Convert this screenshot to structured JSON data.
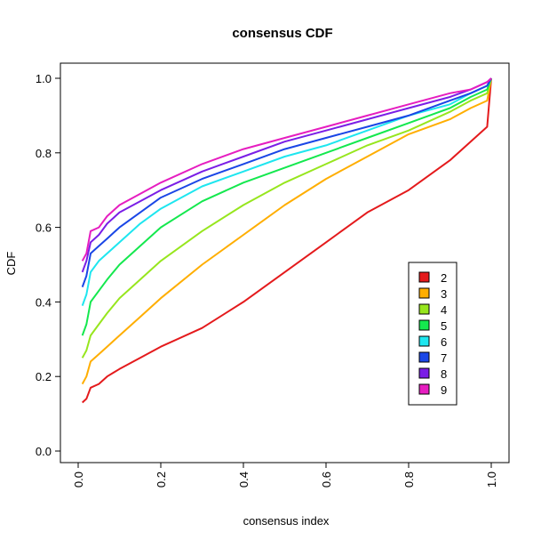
{
  "chart_data": {
    "type": "line",
    "title": "consensus CDF",
    "xlabel": "consensus index",
    "ylabel": "CDF",
    "xlim": [
      0,
      1
    ],
    "ylim": [
      0,
      1
    ],
    "x_ticks": [
      "0.0",
      "0.2",
      "0.4",
      "0.6",
      "0.8",
      "1.0"
    ],
    "y_ticks": [
      "0.0",
      "0.2",
      "0.4",
      "0.6",
      "0.8",
      "1.0"
    ],
    "legend_position": "right, lower-middle",
    "x": [
      0.01,
      0.02,
      0.03,
      0.05,
      0.07,
      0.1,
      0.15,
      0.2,
      0.3,
      0.4,
      0.5,
      0.6,
      0.7,
      0.8,
      0.9,
      0.95,
      0.99,
      1.0
    ],
    "series": [
      {
        "name": "2",
        "color": "#e41a1c",
        "values": [
          0.13,
          0.14,
          0.17,
          0.18,
          0.2,
          0.22,
          0.25,
          0.28,
          0.33,
          0.4,
          0.48,
          0.56,
          0.64,
          0.7,
          0.78,
          0.83,
          0.87,
          1.0
        ]
      },
      {
        "name": "3",
        "color": "#ffae00",
        "values": [
          0.18,
          0.2,
          0.24,
          0.26,
          0.28,
          0.31,
          0.36,
          0.41,
          0.5,
          0.58,
          0.66,
          0.73,
          0.79,
          0.85,
          0.89,
          0.92,
          0.94,
          1.0
        ]
      },
      {
        "name": "4",
        "color": "#97e61e",
        "values": [
          0.25,
          0.27,
          0.31,
          0.34,
          0.37,
          0.41,
          0.46,
          0.51,
          0.59,
          0.66,
          0.72,
          0.77,
          0.82,
          0.86,
          0.91,
          0.94,
          0.96,
          1.0
        ]
      },
      {
        "name": "5",
        "color": "#14e84e",
        "values": [
          0.31,
          0.34,
          0.4,
          0.43,
          0.46,
          0.5,
          0.55,
          0.6,
          0.67,
          0.72,
          0.76,
          0.8,
          0.84,
          0.88,
          0.92,
          0.95,
          0.97,
          1.0
        ]
      },
      {
        "name": "6",
        "color": "#1ee6ef",
        "values": [
          0.39,
          0.42,
          0.48,
          0.51,
          0.53,
          0.56,
          0.61,
          0.65,
          0.71,
          0.75,
          0.79,
          0.82,
          0.86,
          0.9,
          0.93,
          0.96,
          0.98,
          1.0
        ]
      },
      {
        "name": "7",
        "color": "#1a46e6",
        "values": [
          0.44,
          0.47,
          0.53,
          0.55,
          0.57,
          0.6,
          0.64,
          0.68,
          0.73,
          0.77,
          0.81,
          0.84,
          0.87,
          0.9,
          0.94,
          0.96,
          0.98,
          1.0
        ]
      },
      {
        "name": "8",
        "color": "#7a1ee6",
        "values": [
          0.48,
          0.51,
          0.56,
          0.58,
          0.61,
          0.64,
          0.67,
          0.7,
          0.75,
          0.79,
          0.83,
          0.86,
          0.89,
          0.92,
          0.95,
          0.97,
          0.99,
          1.0
        ]
      },
      {
        "name": "9",
        "color": "#e61ec0",
        "values": [
          0.51,
          0.53,
          0.59,
          0.6,
          0.63,
          0.66,
          0.69,
          0.72,
          0.77,
          0.81,
          0.84,
          0.87,
          0.9,
          0.93,
          0.96,
          0.97,
          0.99,
          1.0
        ]
      }
    ]
  }
}
